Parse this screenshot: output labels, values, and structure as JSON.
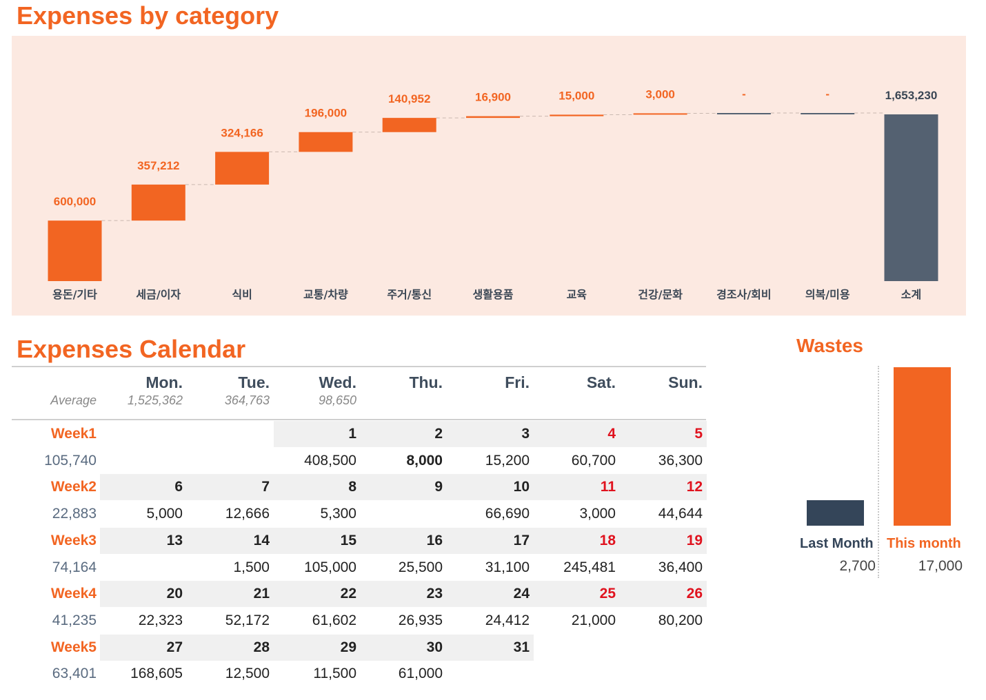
{
  "titles": {
    "category": "Expenses by category",
    "calendar": "Expenses Calendar",
    "wastes": "Wastes"
  },
  "colors": {
    "accent": "#f26522",
    "total": "#546171",
    "panel": "#fce9e1",
    "weekend": "#e0121e"
  },
  "chart_data": {
    "type": "waterfall",
    "title": "Expenses by category",
    "categories": [
      "용돈/기타",
      "세금/이자",
      "식비",
      "교통/차량",
      "주거/통신",
      "생활용품",
      "교육",
      "건강/문화",
      "경조사/회비",
      "의복/미용",
      "소계"
    ],
    "values": [
      600000,
      357212,
      324166,
      196000,
      140952,
      16900,
      15000,
      3000,
      0,
      0,
      1653230
    ],
    "labels": [
      "600,000",
      "357,212",
      "324,166",
      "196,000",
      "140,952",
      "16,900",
      "15,000",
      "3,000",
      "-",
      "-",
      "1,653,230"
    ],
    "total_index": 10,
    "ylim": [
      0,
      1653230
    ],
    "grid": false,
    "legend": "none"
  },
  "calendar": {
    "average_label": "Average",
    "days": [
      {
        "name": "Mon.",
        "avg": "1,525,362",
        "weekend": false
      },
      {
        "name": "Tue.",
        "avg": "364,763",
        "weekend": false
      },
      {
        "name": "Wed.",
        "avg": "98,650",
        "weekend": false
      },
      {
        "name": "Thu.",
        "avg": "",
        "weekend": false
      },
      {
        "name": "Fri.",
        "avg": "",
        "weekend": false
      },
      {
        "name": "Sat.",
        "avg": "",
        "weekend": true
      },
      {
        "name": "Sun.",
        "avg": "",
        "weekend": true
      }
    ],
    "weeks": [
      {
        "label": "Week1",
        "total": "105,740",
        "dates": [
          "",
          "",
          "1",
          "2",
          "3",
          "4",
          "5"
        ],
        "amounts": [
          "",
          "",
          "408,500",
          "8,000",
          "15,200",
          "60,700",
          "36,300"
        ],
        "bold_amounts": [
          3
        ]
      },
      {
        "label": "Week2",
        "total": "22,883",
        "dates": [
          "6",
          "7",
          "8",
          "9",
          "10",
          "11",
          "12"
        ],
        "amounts": [
          "5,000",
          "12,666",
          "5,300",
          "",
          "66,690",
          "3,000",
          "44,644"
        ],
        "bold_amounts": []
      },
      {
        "label": "Week3",
        "total": "74,164",
        "dates": [
          "13",
          "14",
          "15",
          "16",
          "17",
          "18",
          "19"
        ],
        "amounts": [
          "",
          "1,500",
          "105,000",
          "25,500",
          "31,100",
          "245,481",
          "36,400"
        ],
        "bold_amounts": []
      },
      {
        "label": "Week4",
        "total": "41,235",
        "dates": [
          "20",
          "21",
          "22",
          "23",
          "24",
          "25",
          "26"
        ],
        "amounts": [
          "22,323",
          "52,172",
          "61,602",
          "26,935",
          "24,412",
          "21,000",
          "80,200"
        ],
        "bold_amounts": []
      },
      {
        "label": "Week5",
        "total": "63,401",
        "dates": [
          "27",
          "28",
          "29",
          "30",
          "31",
          "",
          ""
        ],
        "amounts": [
          "168,605",
          "12,500",
          "11,500",
          "61,000",
          "",
          "",
          ""
        ],
        "bold_amounts": []
      }
    ]
  },
  "wastes": {
    "last_month": {
      "label": "Last Month",
      "value": "2,700",
      "amount": 2700,
      "color": "#344559"
    },
    "this_month": {
      "label": "This month",
      "value": "17,000",
      "amount": 17000,
      "color": "#f26522"
    }
  }
}
